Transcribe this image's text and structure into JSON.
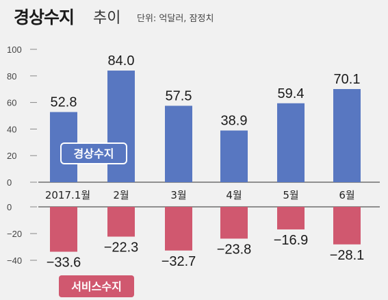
{
  "header": {
    "title_main": "경상수지",
    "title_sub": "추이",
    "unit": "단위: 억달러, 잠정치"
  },
  "colors": {
    "current_account": "#5877c1",
    "services": "#d0586f",
    "background": "#f1f1f1"
  },
  "chart_data": {
    "type": "bar",
    "categories": [
      "2017.1월",
      "2월",
      "3월",
      "4월",
      "5월",
      "6월"
    ],
    "series": [
      {
        "name": "경상수지",
        "values": [
          52.8,
          84.0,
          57.5,
          38.9,
          59.4,
          70.1
        ],
        "labels": [
          "52.8",
          "84.0",
          "57.5",
          "38.9",
          "59.4",
          "70.1"
        ]
      },
      {
        "name": "서비스수지",
        "values": [
          -33.6,
          -22.3,
          -32.7,
          -23.8,
          -16.9,
          -28.1
        ],
        "labels": [
          "−33.6",
          "−22.3",
          "−32.7",
          "−23.8",
          "−16.9",
          "−28.1"
        ]
      }
    ],
    "upper_axis": {
      "ylim": [
        0,
        100
      ],
      "ticks": [
        "100",
        "80",
        "60",
        "40",
        "20",
        "0"
      ]
    },
    "lower_axis": {
      "ylim": [
        -40,
        0
      ],
      "ticks": [
        "0",
        "−20",
        "−40"
      ]
    },
    "grid": false,
    "legend": "inside-left"
  }
}
